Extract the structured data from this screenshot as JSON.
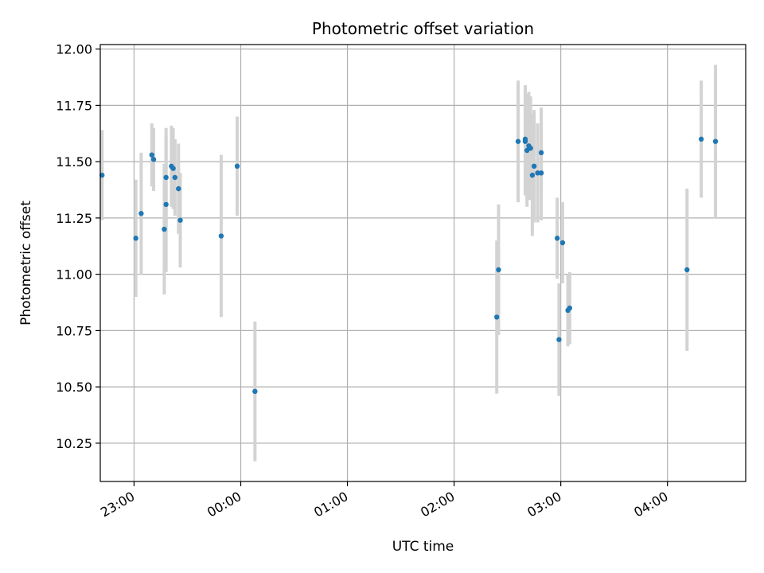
{
  "chart_data": {
    "type": "scatter",
    "title": "Photometric offset variation",
    "xlabel": "UTC time",
    "ylabel": "Photometric offset",
    "grid": true,
    "x_axis": "time",
    "xlim": [
      "22:41",
      "04:44"
    ],
    "ylim": [
      10.08,
      12.02
    ],
    "x_ticks": [
      "23:00",
      "00:00",
      "01:00",
      "02:00",
      "03:00",
      "04:00"
    ],
    "y_ticks": [
      "10.25",
      "10.50",
      "10.75",
      "11.00",
      "11.25",
      "11.50",
      "11.75",
      "12.00"
    ],
    "point_color": "#1f77b4",
    "errorbar_color": "#d3d3d3",
    "points": [
      {
        "time": "22:42",
        "y": 11.44,
        "err": 0.2
      },
      {
        "time": "23:01",
        "y": 11.16,
        "err": 0.26
      },
      {
        "time": "23:04",
        "y": 11.27,
        "err": 0.27
      },
      {
        "time": "23:10",
        "y": 11.53,
        "err": 0.14
      },
      {
        "time": "23:11",
        "y": 11.51,
        "err": 0.14
      },
      {
        "time": "23:17",
        "y": 11.2,
        "err": 0.29
      },
      {
        "time": "23:18",
        "y": 11.31,
        "err": 0.3
      },
      {
        "time": "23:18",
        "y": 11.43,
        "err": 0.22
      },
      {
        "time": "23:21",
        "y": 11.48,
        "err": 0.18
      },
      {
        "time": "23:22",
        "y": 11.47,
        "err": 0.18
      },
      {
        "time": "23:23",
        "y": 11.43,
        "err": 0.17
      },
      {
        "time": "23:25",
        "y": 11.38,
        "err": 0.2
      },
      {
        "time": "23:26",
        "y": 11.24,
        "err": 0.21
      },
      {
        "time": "23:49",
        "y": 11.17,
        "err": 0.36
      },
      {
        "time": "23:58",
        "y": 11.48,
        "err": 0.22
      },
      {
        "time": "00:08",
        "y": 10.48,
        "err": 0.31
      },
      {
        "time": "02:24",
        "y": 10.81,
        "err": 0.34
      },
      {
        "time": "02:25",
        "y": 11.02,
        "err": 0.29
      },
      {
        "time": "02:36",
        "y": 11.59,
        "err": 0.27
      },
      {
        "time": "02:40",
        "y": 11.59,
        "err": 0.24
      },
      {
        "time": "02:40",
        "y": 11.6,
        "err": 0.24
      },
      {
        "time": "02:41",
        "y": 11.55,
        "err": 0.25
      },
      {
        "time": "02:42",
        "y": 11.57,
        "err": 0.24
      },
      {
        "time": "02:43",
        "y": 11.56,
        "err": 0.23
      },
      {
        "time": "02:44",
        "y": 11.44,
        "err": 0.27
      },
      {
        "time": "02:45",
        "y": 11.48,
        "err": 0.25
      },
      {
        "time": "02:47",
        "y": 11.45,
        "err": 0.22
      },
      {
        "time": "02:49",
        "y": 11.54,
        "err": 0.2
      },
      {
        "time": "02:49",
        "y": 11.45,
        "err": 0.21
      },
      {
        "time": "02:58",
        "y": 11.16,
        "err": 0.18
      },
      {
        "time": "02:59",
        "y": 10.71,
        "err": 0.25
      },
      {
        "time": "03:01",
        "y": 11.14,
        "err": 0.18
      },
      {
        "time": "03:04",
        "y": 10.84,
        "err": 0.16
      },
      {
        "time": "03:05",
        "y": 10.85,
        "err": 0.16
      },
      {
        "time": "04:11",
        "y": 11.02,
        "err": 0.36
      },
      {
        "time": "04:19",
        "y": 11.6,
        "err": 0.26
      },
      {
        "time": "04:27",
        "y": 11.59,
        "err": 0.34
      }
    ]
  }
}
